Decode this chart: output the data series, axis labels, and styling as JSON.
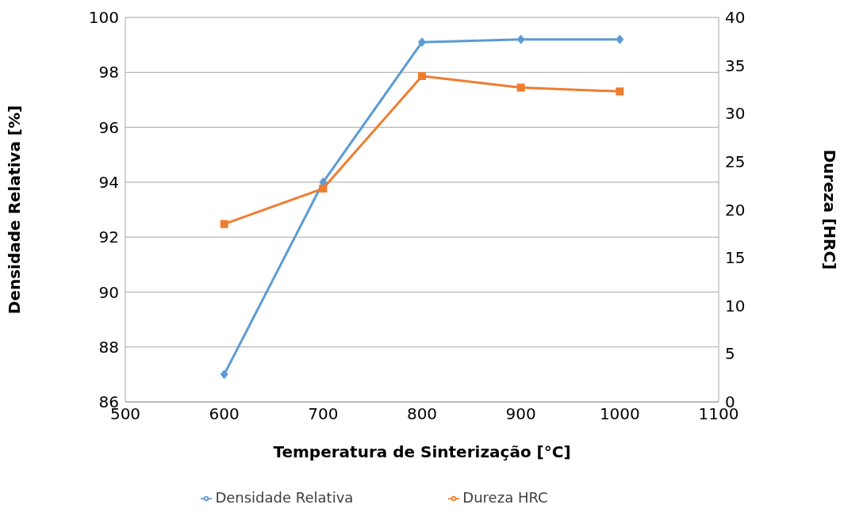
{
  "chart_data": {
    "type": "line",
    "xlabel": "Temperatura de Sinterização [°C]",
    "ylabel": "Densidade Relativa [%]",
    "y2label": "Dureza [HRC]",
    "x": [
      600,
      700,
      800,
      900,
      1000
    ],
    "series": [
      {
        "name": "Densidade Relativa",
        "color": "#5b9bd5",
        "values": [
          87.0,
          94.0,
          99.1,
          99.2,
          99.2
        ],
        "marker": "diamond"
      },
      {
        "name": "Dureza HRC",
        "color": "#ed7d31",
        "values": [
          18.5,
          22.2,
          33.9,
          32.7,
          32.3
        ],
        "axis": "y2",
        "marker": "square"
      }
    ],
    "xlim": [
      500,
      1100
    ],
    "xticks": [
      500,
      600,
      700,
      800,
      900,
      1000,
      1100
    ],
    "ylim": [
      86,
      100
    ],
    "yticks": [
      86,
      88,
      90,
      92,
      94,
      96,
      98,
      100
    ],
    "y2lim": [
      0,
      40
    ],
    "y2ticks": [
      0,
      5,
      10,
      15,
      20,
      25,
      30,
      35,
      40
    ],
    "grid": "y",
    "legend": "bottom"
  }
}
